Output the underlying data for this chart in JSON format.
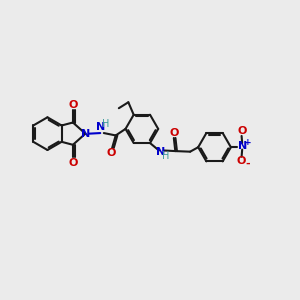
{
  "bg_color": "#ebebeb",
  "line_color": "#1a1a1a",
  "blue_color": "#0000cc",
  "red_color": "#cc0000",
  "teal_color": "#3a9a9a",
  "bond_lw": 1.5,
  "ring_r": 0.55,
  "figsize": [
    3.0,
    3.0
  ],
  "dpi": 100,
  "xlim": [
    0,
    10
  ],
  "ylim": [
    0,
    10
  ]
}
